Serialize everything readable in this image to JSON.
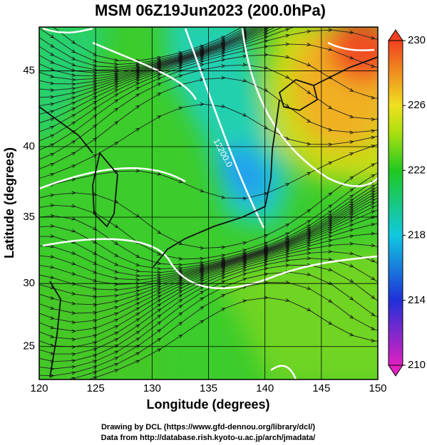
{
  "chart_data": {
    "type": "contour_map",
    "title": "MSM 06Z19Jun2023 (200.0hPa)",
    "xlabel": "Longitude (degrees)",
    "ylabel": "Latitude  (degrees)",
    "xlim": [
      120,
      150
    ],
    "xticks": [
      120,
      125,
      130,
      135,
      140,
      145,
      150
    ],
    "ylim": [
      22.3,
      47.7
    ],
    "yticks": [
      25,
      30,
      35,
      40,
      45
    ],
    "grid": true,
    "colorbar": {
      "lim": [
        210,
        230
      ],
      "ticks": [
        210,
        214,
        218,
        222,
        226,
        230
      ]
    },
    "contour_labels": [
      "12200.0"
    ],
    "footer": [
      "Drawing by DCL (https://www.gfd-dennou.org/library/dcl/)",
      "Data from http://database.rish.kyoto-u.ac.jp/arch/jmadata/"
    ]
  }
}
